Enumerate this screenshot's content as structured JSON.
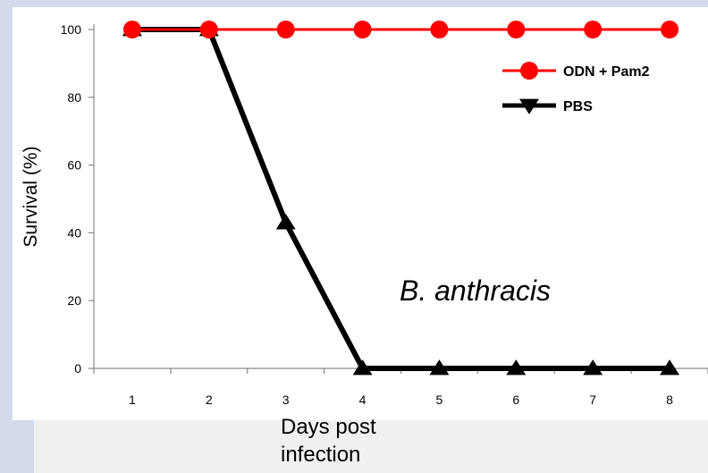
{
  "chart_data": {
    "type": "line",
    "title": "",
    "xlabel": "Days post infection",
    "ylabel": "Survival (%)",
    "x": [
      1,
      2,
      3,
      4,
      5,
      6,
      7,
      8
    ],
    "xlim": [
      0.5,
      8.5
    ],
    "ylim": [
      0,
      100
    ],
    "yticks": [
      0,
      20,
      40,
      60,
      80,
      100
    ],
    "grid": false,
    "legend_position": "top-right",
    "series": [
      {
        "name": "ODN + Pam2",
        "values": [
          100,
          100,
          100,
          100,
          100,
          100,
          100,
          100
        ],
        "color": "#ff0000",
        "marker": "circle"
      },
      {
        "name": "PBS",
        "values": [
          100,
          100,
          43,
          0,
          0,
          0,
          0,
          0
        ],
        "color": "#000000",
        "marker": "triangle"
      }
    ],
    "annotations": [
      "B. anthracis"
    ]
  }
}
